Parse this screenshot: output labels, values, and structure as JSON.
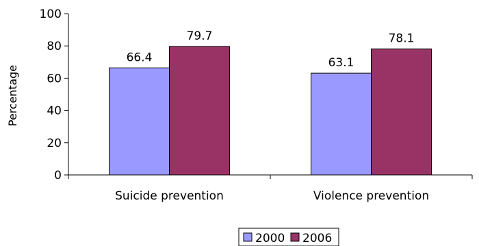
{
  "chart_data": {
    "type": "bar",
    "title": "",
    "xlabel": "",
    "ylabel": "Percentage",
    "ylim": [
      0,
      100
    ],
    "yticks": [
      0,
      20,
      40,
      60,
      80,
      100
    ],
    "categories": [
      "Suicide prevention",
      "Violence prevention"
    ],
    "series": [
      {
        "name": "2000",
        "values": [
          66.4,
          63.1
        ],
        "labels": [
          "66.4",
          "63.1"
        ],
        "color": "#9999ff"
      },
      {
        "name": "2006",
        "values": [
          79.7,
          78.1
        ],
        "labels": [
          "79.7",
          "78.1"
        ],
        "color": "#993366"
      }
    ],
    "grid": false,
    "legend": "bottom-center"
  }
}
